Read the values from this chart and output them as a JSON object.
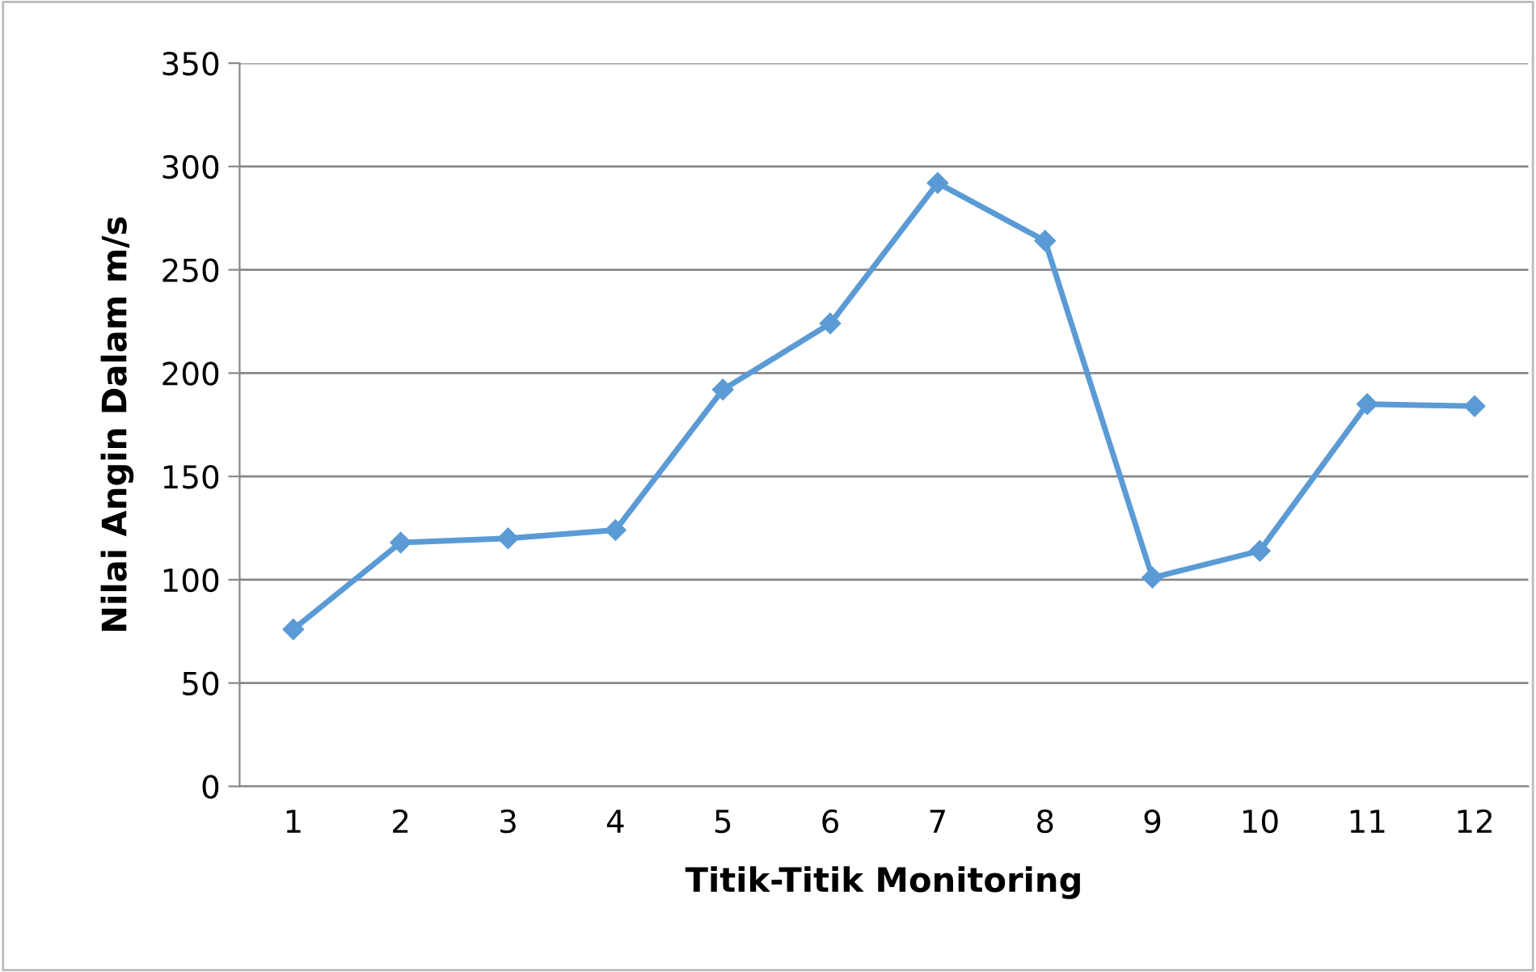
{
  "chart_data": {
    "type": "line",
    "xlabel": "Titik-Titik Monitoring",
    "ylabel": "Nilai Angin Dalam m/s",
    "categories": [
      "1",
      "2",
      "3",
      "4",
      "5",
      "6",
      "7",
      "8",
      "9",
      "10",
      "11",
      "12"
    ],
    "series": [
      {
        "color": "#5b9bd5",
        "values": [
          76,
          118,
          120,
          124,
          192,
          224,
          292,
          264,
          101,
          114,
          185,
          184
        ]
      }
    ],
    "ylim": [
      0,
      350
    ],
    "yticks": [
      0,
      50,
      100,
      150,
      200,
      250,
      300,
      350
    ],
    "grid": "y",
    "marker": "diamond",
    "line_style": "solid"
  }
}
